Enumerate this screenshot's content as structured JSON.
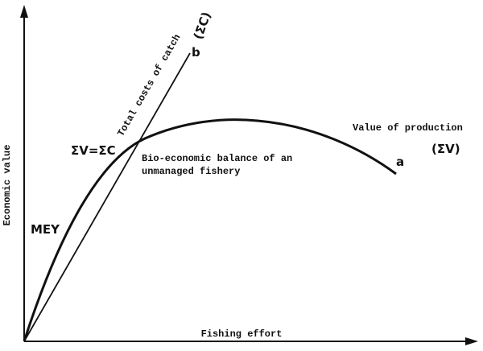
{
  "axes": {
    "y_label": "Economic value",
    "x_label": "Fishing effort"
  },
  "cost_curve": {
    "label": "Total costs of catch",
    "symbol": "(ΣC)",
    "end_label": "b"
  },
  "value_curve": {
    "label": "Value of production",
    "symbol": "(ΣV)",
    "end_label": "a"
  },
  "balance": {
    "equation": "ΣV=ΣC",
    "lines": [
      "Bio-economic balance of an",
      "unmanaged fishery"
    ]
  },
  "mey": "MEY"
}
